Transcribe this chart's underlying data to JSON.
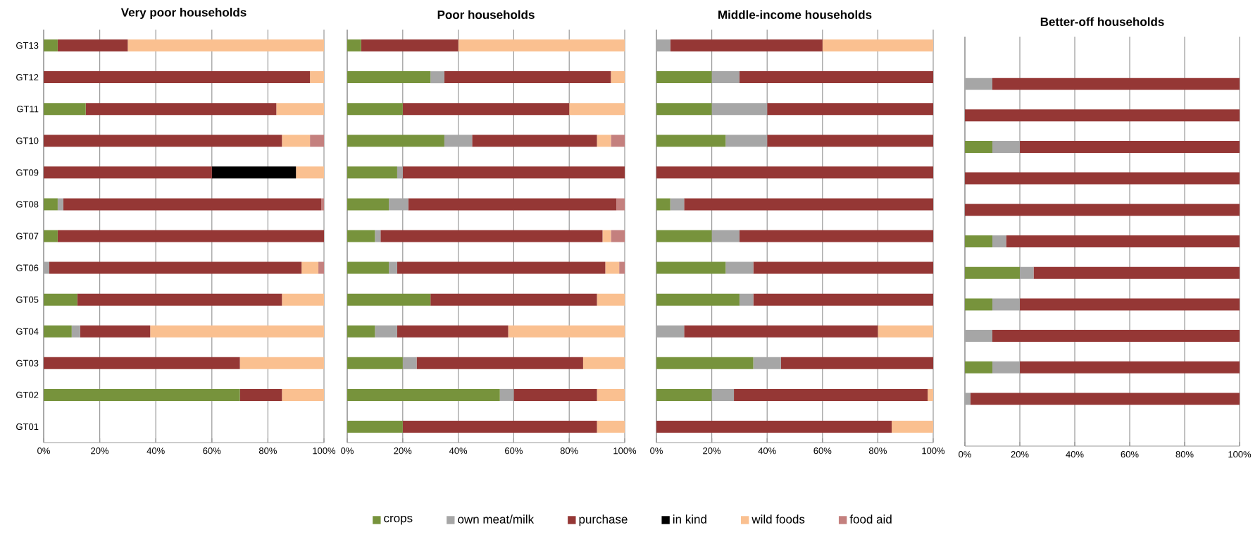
{
  "chart_data": [
    {
      "type": "bar",
      "orientation": "horizontal",
      "stacked": true,
      "title": "Very poor households",
      "categories": [
        "GT13",
        "GT12",
        "GT11",
        "GT10",
        "GT09",
        "GT08",
        "GT07",
        "GT06",
        "GT05",
        "GT04",
        "GT03",
        "GT02",
        "GT01"
      ],
      "xlim": [
        0,
        100
      ],
      "xticks": [
        {
          "value": 0,
          "label": "0%"
        },
        {
          "value": 20,
          "label": "20%"
        },
        {
          "value": 40,
          "label": "40%"
        },
        {
          "value": 60,
          "label": "60%"
        },
        {
          "value": 80,
          "label": "80%"
        },
        {
          "value": 100,
          "label": "100%"
        }
      ],
      "grid": "x",
      "legend": "bottom",
      "series": [
        {
          "name": "crops",
          "color": "#77933c",
          "values": [
            5,
            0,
            15,
            0,
            0,
            5,
            5,
            0,
            12,
            10,
            0,
            70,
            null
          ]
        },
        {
          "name": "own meat/milk",
          "color": "#a6a6a6",
          "values": [
            0,
            0,
            0,
            0,
            0,
            2,
            0,
            2,
            0,
            3,
            0,
            0,
            null
          ]
        },
        {
          "name": "purchase",
          "color": "#953735",
          "values": [
            25,
            95,
            68,
            85,
            60,
            92,
            95,
            90,
            73,
            25,
            70,
            15,
            null
          ]
        },
        {
          "name": "in kind",
          "color": "#000000",
          "values": [
            0,
            0,
            0,
            0,
            30,
            0,
            0,
            0,
            0,
            0,
            0,
            0,
            null
          ]
        },
        {
          "name": "wild foods",
          "color": "#fac090",
          "values": [
            70,
            5,
            17,
            10,
            10,
            0,
            0,
            6,
            15,
            62,
            30,
            15,
            null
          ]
        },
        {
          "name": "food aid",
          "color": "#c4807e",
          "values": [
            0,
            0,
            0,
            5,
            0,
            1,
            0,
            2,
            0,
            0,
            0,
            0,
            null
          ]
        }
      ]
    },
    {
      "type": "bar",
      "orientation": "horizontal",
      "stacked": true,
      "title": "Poor households",
      "categories": [
        null,
        null,
        null,
        null,
        null,
        null,
        null,
        null,
        null,
        null,
        null,
        null,
        null
      ],
      "xlim": [
        0,
        100
      ],
      "xticks": [
        {
          "value": 0,
          "label": "0%"
        },
        {
          "value": 20,
          "label": "20%"
        },
        {
          "value": 40,
          "label": "40%"
        },
        {
          "value": 60,
          "label": "60%"
        },
        {
          "value": 80,
          "label": "80%"
        },
        {
          "value": 100,
          "label": "100%"
        }
      ],
      "grid": "x",
      "series": [
        {
          "color": "#77933c",
          "values": [
            5,
            30,
            20,
            35,
            18,
            15,
            10,
            15,
            30,
            10,
            20,
            55,
            20
          ]
        },
        {
          "color": "#a6a6a6",
          "values": [
            0,
            5,
            0,
            10,
            2,
            7,
            2,
            3,
            0,
            8,
            5,
            5,
            0
          ]
        },
        {
          "color": "#953735",
          "values": [
            35,
            60,
            60,
            45,
            80,
            75,
            80,
            75,
            60,
            40,
            60,
            30,
            70
          ]
        },
        {
          "color": "#000000",
          "values": [
            0,
            0,
            0,
            0,
            0,
            0,
            0,
            0,
            0,
            0,
            0,
            0,
            0
          ]
        },
        {
          "color": "#fac090",
          "values": [
            60,
            5,
            20,
            5,
            0,
            0,
            3,
            5,
            10,
            42,
            15,
            10,
            10
          ]
        },
        {
          "color": "#c4807e",
          "values": [
            0,
            0,
            0,
            5,
            0,
            3,
            5,
            2,
            0,
            0,
            0,
            0,
            0
          ]
        }
      ]
    },
    {
      "type": "bar",
      "orientation": "horizontal",
      "stacked": true,
      "title": "Middle-income households",
      "categories": [
        null,
        null,
        null,
        null,
        null,
        null,
        null,
        null,
        null,
        null,
        null,
        null,
        null
      ],
      "xlim": [
        0,
        100
      ],
      "xticks": [
        {
          "value": 0,
          "label": "0%"
        },
        {
          "value": 20,
          "label": "20%"
        },
        {
          "value": 40,
          "label": "40%"
        },
        {
          "value": 60,
          "label": "60%"
        },
        {
          "value": 80,
          "label": "80%"
        },
        {
          "value": 100,
          "label": "100%"
        }
      ],
      "grid": "x",
      "series": [
        {
          "color": "#77933c",
          "values": [
            0,
            20,
            20,
            25,
            0,
            5,
            20,
            25,
            30,
            0,
            35,
            20,
            0
          ]
        },
        {
          "color": "#a6a6a6",
          "values": [
            5,
            10,
            20,
            15,
            0,
            5,
            10,
            10,
            5,
            10,
            10,
            8,
            0
          ]
        },
        {
          "color": "#953735",
          "values": [
            55,
            70,
            60,
            60,
            100,
            90,
            70,
            65,
            65,
            70,
            55,
            70,
            85
          ]
        },
        {
          "color": "#000000",
          "values": [
            0,
            0,
            0,
            0,
            0,
            0,
            0,
            0,
            0,
            0,
            0,
            0,
            0
          ]
        },
        {
          "color": "#fac090",
          "values": [
            40,
            0,
            0,
            0,
            0,
            0,
            0,
            0,
            0,
            20,
            0,
            2,
            15
          ]
        },
        {
          "color": "#c4807e",
          "values": [
            0,
            0,
            0,
            0,
            0,
            0,
            0,
            0,
            0,
            0,
            0,
            0,
            0
          ]
        }
      ]
    },
    {
      "type": "bar",
      "orientation": "horizontal",
      "stacked": true,
      "title": "Better-off households",
      "categories": [
        null,
        null,
        null,
        null,
        null,
        null,
        null,
        null,
        null,
        null,
        null,
        null,
        null
      ],
      "xlim": [
        0,
        100
      ],
      "xticks": [
        {
          "value": 0,
          "label": "0%"
        },
        {
          "value": 20,
          "label": "20%"
        },
        {
          "value": 40,
          "label": "40%"
        },
        {
          "value": 60,
          "label": "60%"
        },
        {
          "value": 80,
          "label": "80%"
        },
        {
          "value": 100,
          "label": "100%"
        }
      ],
      "grid": "x",
      "series": [
        {
          "color": "#77933c",
          "values": [
            null,
            0,
            0,
            10,
            0,
            0,
            10,
            20,
            10,
            0,
            10,
            0,
            null
          ]
        },
        {
          "color": "#a6a6a6",
          "values": [
            null,
            10,
            0,
            10,
            0,
            0,
            5,
            5,
            10,
            10,
            10,
            2,
            null
          ]
        },
        {
          "color": "#953735",
          "values": [
            null,
            90,
            100,
            80,
            100,
            100,
            85,
            75,
            80,
            90,
            80,
            98,
            null
          ]
        },
        {
          "color": "#000000",
          "values": [
            null,
            0,
            0,
            0,
            0,
            0,
            0,
            0,
            0,
            0,
            0,
            0,
            null
          ]
        },
        {
          "color": "#fac090",
          "values": [
            null,
            0,
            0,
            0,
            0,
            0,
            0,
            0,
            0,
            0,
            0,
            0,
            null
          ]
        },
        {
          "color": "#c4807e",
          "values": [
            null,
            0,
            0,
            0,
            0,
            0,
            0,
            0,
            0,
            0,
            0,
            0,
            null
          ]
        }
      ]
    }
  ]
}
